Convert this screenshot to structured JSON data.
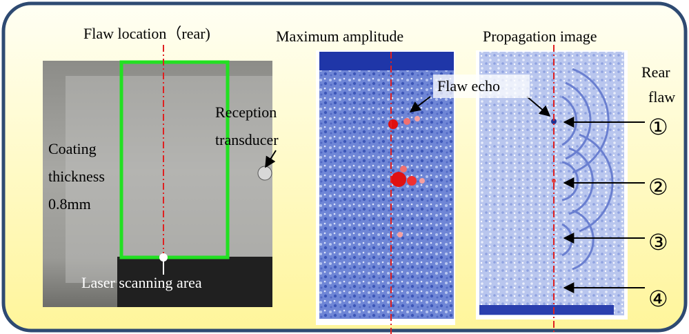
{
  "labels": {
    "flaw_location": "Flaw location（rear)",
    "maximum_amplitude": "Maximum amplitude",
    "propagation_image": "Propagation image",
    "coating": [
      "Coating",
      "thickness",
      "0.8mm"
    ],
    "reception": [
      "Reception",
      "transducer"
    ],
    "laser_area": "Laser scanning area",
    "flaw_echo": "Flaw echo",
    "rear_flaw": [
      "Rear",
      "flaw"
    ],
    "markers": [
      "①",
      "②",
      "③",
      "④"
    ]
  }
}
